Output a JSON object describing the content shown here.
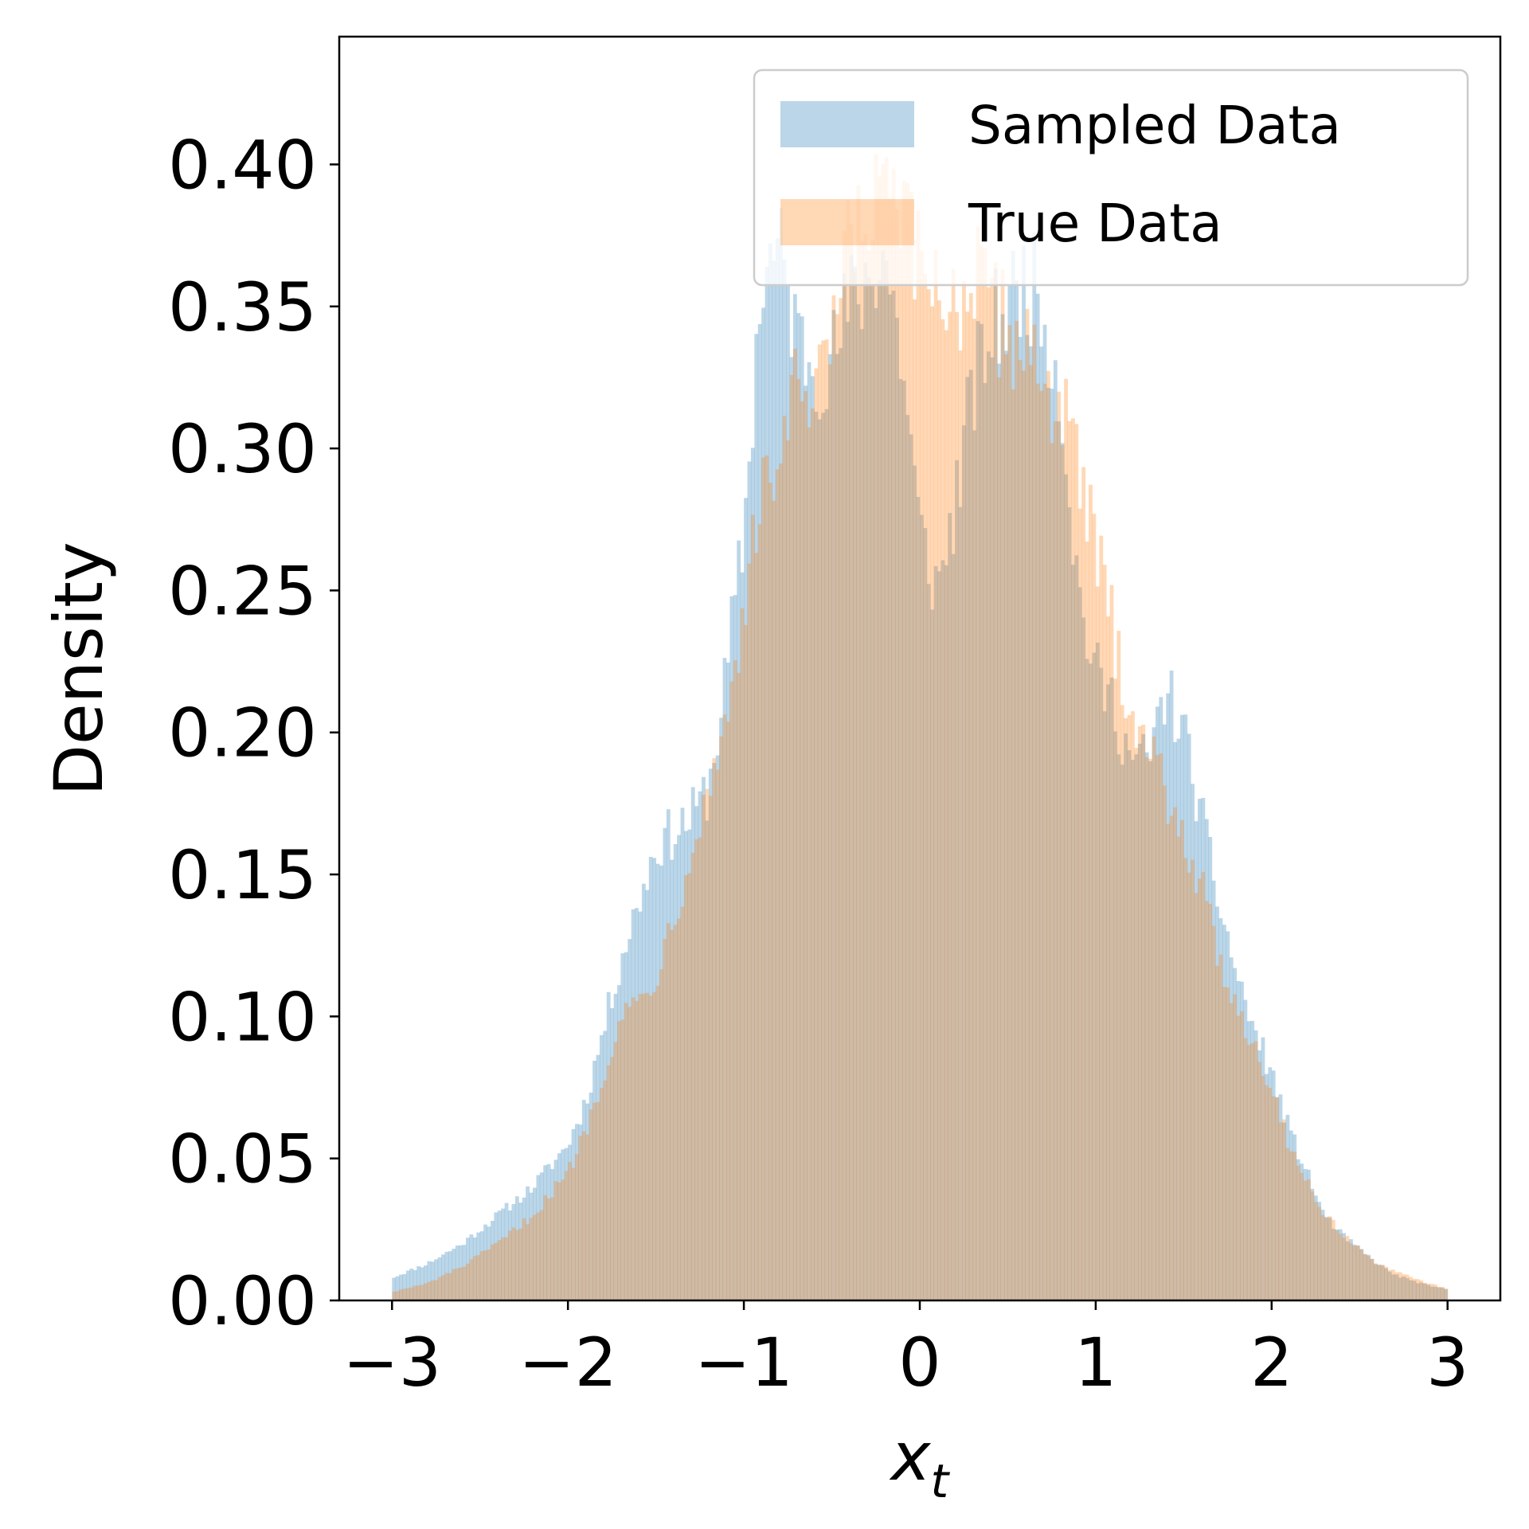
{
  "chart_data": {
    "type": "bar",
    "histogram": true,
    "xlabel": "x",
    "xlabel_subscript": "t",
    "ylabel": "Density",
    "xlim": [
      -3.3,
      3.3
    ],
    "ylim": [
      0,
      0.445
    ],
    "xticks": [
      -3,
      -2,
      -1,
      0,
      1,
      2,
      3
    ],
    "xtick_labels": [
      "−3",
      "−2",
      "−1",
      "0",
      "1",
      "2",
      "3"
    ],
    "yticks": [
      0,
      0.05,
      0.1,
      0.15,
      0.2,
      0.25,
      0.3,
      0.35,
      0.4
    ],
    "ytick_labels": [
      "0.00",
      "0.05",
      "0.10",
      "0.15",
      "0.20",
      "0.25",
      "0.30",
      "0.35",
      "0.40"
    ],
    "grid": false,
    "legend_position": "top-right",
    "bins": {
      "start": -3.0,
      "end": 3.0,
      "count": 300
    },
    "series": [
      {
        "name": "Sampled Data",
        "color": "#1f77b4",
        "opacity": 0.3,
        "density_profile": [
          [
            -3.0,
            0.008
          ],
          [
            -2.8,
            0.013
          ],
          [
            -2.6,
            0.02
          ],
          [
            -2.4,
            0.03
          ],
          [
            -2.2,
            0.04
          ],
          [
            -2.0,
            0.055
          ],
          [
            -1.9,
            0.07
          ],
          [
            -1.8,
            0.095
          ],
          [
            -1.7,
            0.12
          ],
          [
            -1.6,
            0.14
          ],
          [
            -1.5,
            0.16
          ],
          [
            -1.4,
            0.165
          ],
          [
            -1.3,
            0.17
          ],
          [
            -1.2,
            0.18
          ],
          [
            -1.1,
            0.22
          ],
          [
            -1.0,
            0.27
          ],
          [
            -0.9,
            0.36
          ],
          [
            -0.8,
            0.37
          ],
          [
            -0.7,
            0.34
          ],
          [
            -0.6,
            0.33
          ],
          [
            -0.5,
            0.33
          ],
          [
            -0.4,
            0.35
          ],
          [
            -0.3,
            0.36
          ],
          [
            -0.2,
            0.37
          ],
          [
            -0.1,
            0.33
          ],
          [
            0.0,
            0.27
          ],
          [
            0.1,
            0.25
          ],
          [
            0.2,
            0.28
          ],
          [
            0.3,
            0.32
          ],
          [
            0.4,
            0.34
          ],
          [
            0.5,
            0.35
          ],
          [
            0.6,
            0.36
          ],
          [
            0.7,
            0.35
          ],
          [
            0.8,
            0.32
          ],
          [
            0.9,
            0.25
          ],
          [
            1.0,
            0.22
          ],
          [
            1.1,
            0.21
          ],
          [
            1.2,
            0.19
          ],
          [
            1.3,
            0.19
          ],
          [
            1.4,
            0.215
          ],
          [
            1.5,
            0.2
          ],
          [
            1.6,
            0.17
          ],
          [
            1.7,
            0.14
          ],
          [
            1.8,
            0.115
          ],
          [
            1.9,
            0.095
          ],
          [
            2.0,
            0.08
          ],
          [
            2.1,
            0.06
          ],
          [
            2.2,
            0.045
          ],
          [
            2.3,
            0.03
          ],
          [
            2.4,
            0.023
          ],
          [
            2.5,
            0.018
          ],
          [
            2.6,
            0.013
          ],
          [
            2.7,
            0.009
          ],
          [
            2.8,
            0.007
          ],
          [
            2.9,
            0.005
          ],
          [
            3.0,
            0.004
          ]
        ]
      },
      {
        "name": "True Data",
        "color": "#ff7f0e",
        "opacity": 0.3,
        "density_profile": [
          [
            -3.0,
            0.003
          ],
          [
            -2.8,
            0.006
          ],
          [
            -2.6,
            0.012
          ],
          [
            -2.4,
            0.02
          ],
          [
            -2.2,
            0.03
          ],
          [
            -2.0,
            0.045
          ],
          [
            -1.9,
            0.06
          ],
          [
            -1.8,
            0.08
          ],
          [
            -1.7,
            0.1
          ],
          [
            -1.6,
            0.105
          ],
          [
            -1.5,
            0.115
          ],
          [
            -1.4,
            0.135
          ],
          [
            -1.3,
            0.16
          ],
          [
            -1.2,
            0.18
          ],
          [
            -1.1,
            0.205
          ],
          [
            -1.0,
            0.245
          ],
          [
            -0.9,
            0.28
          ],
          [
            -0.8,
            0.3
          ],
          [
            -0.7,
            0.32
          ],
          [
            -0.6,
            0.31
          ],
          [
            -0.5,
            0.34
          ],
          [
            -0.4,
            0.37
          ],
          [
            -0.3,
            0.38
          ],
          [
            -0.2,
            0.39
          ],
          [
            -0.1,
            0.38
          ],
          [
            0.0,
            0.36
          ],
          [
            0.1,
            0.36
          ],
          [
            0.2,
            0.35
          ],
          [
            0.3,
            0.36
          ],
          [
            0.4,
            0.35
          ],
          [
            0.5,
            0.34
          ],
          [
            0.6,
            0.34
          ],
          [
            0.7,
            0.325
          ],
          [
            0.8,
            0.315
          ],
          [
            0.9,
            0.29
          ],
          [
            1.0,
            0.265
          ],
          [
            1.1,
            0.235
          ],
          [
            1.2,
            0.21
          ],
          [
            1.3,
            0.195
          ],
          [
            1.4,
            0.18
          ],
          [
            1.5,
            0.165
          ],
          [
            1.6,
            0.145
          ],
          [
            1.7,
            0.12
          ],
          [
            1.8,
            0.105
          ],
          [
            1.9,
            0.09
          ],
          [
            2.0,
            0.075
          ],
          [
            2.1,
            0.055
          ],
          [
            2.2,
            0.042
          ],
          [
            2.3,
            0.03
          ],
          [
            2.4,
            0.024
          ],
          [
            2.5,
            0.018
          ],
          [
            2.6,
            0.013
          ],
          [
            2.7,
            0.01
          ],
          [
            2.8,
            0.008
          ],
          [
            2.9,
            0.006
          ],
          [
            3.0,
            0.004
          ]
        ]
      }
    ]
  }
}
